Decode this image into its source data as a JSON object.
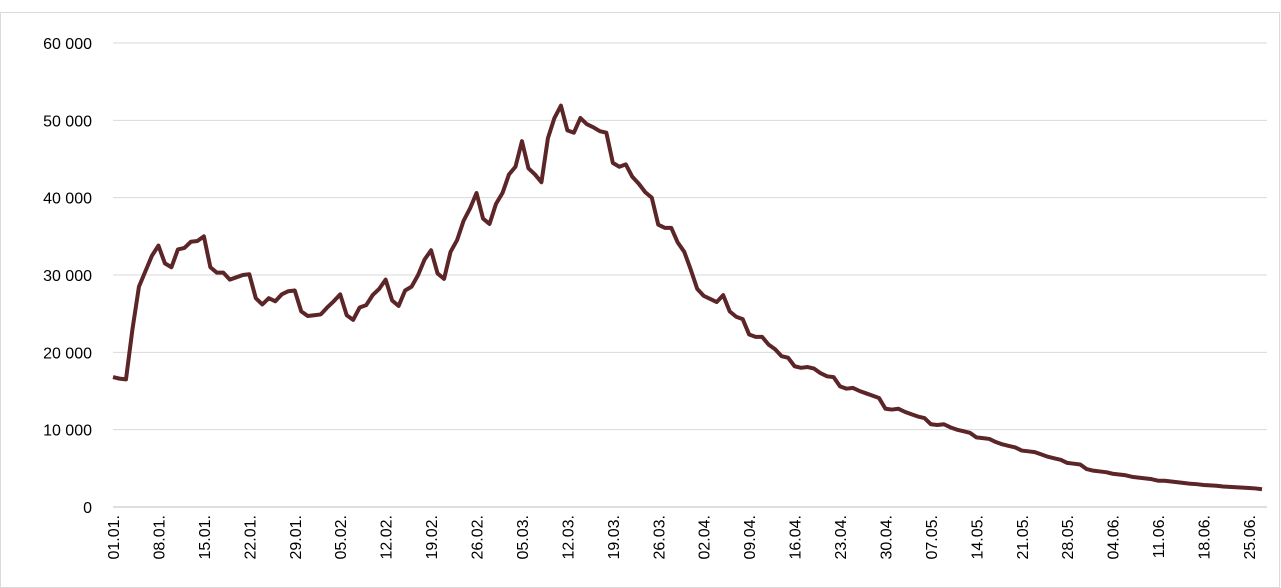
{
  "chart_data": {
    "type": "line",
    "categories": [
      "01.01.",
      null,
      null,
      null,
      null,
      null,
      null,
      "08.01.",
      null,
      null,
      null,
      null,
      null,
      null,
      "15.01.",
      null,
      null,
      null,
      null,
      null,
      null,
      "22.01.",
      null,
      null,
      null,
      null,
      null,
      null,
      "29.01.",
      null,
      null,
      null,
      null,
      null,
      null,
      "05.02.",
      null,
      null,
      null,
      null,
      null,
      null,
      "12.02.",
      null,
      null,
      null,
      null,
      null,
      null,
      "19.02.",
      null,
      null,
      null,
      null,
      null,
      null,
      "26.02.",
      null,
      null,
      null,
      null,
      null,
      null,
      "05.03.",
      null,
      null,
      null,
      null,
      null,
      null,
      "12.03.",
      null,
      null,
      null,
      null,
      null,
      null,
      "19.03.",
      null,
      null,
      null,
      null,
      null,
      null,
      "26.03.",
      null,
      null,
      null,
      null,
      null,
      null,
      "02.04.",
      null,
      null,
      null,
      null,
      null,
      null,
      "09.04.",
      null,
      null,
      null,
      null,
      null,
      null,
      "16.04.",
      null,
      null,
      null,
      null,
      null,
      null,
      "23.04.",
      null,
      null,
      null,
      null,
      null,
      null,
      "30.04.",
      null,
      null,
      null,
      null,
      null,
      null,
      "07.05.",
      null,
      null,
      null,
      null,
      null,
      null,
      "14.05.",
      null,
      null,
      null,
      null,
      null,
      null,
      "21.05.",
      null,
      null,
      null,
      null,
      null,
      null,
      "28.05.",
      null,
      null,
      null,
      null,
      null,
      null,
      "04.06.",
      null,
      null,
      null,
      null,
      null,
      null,
      "11.06.",
      null,
      null,
      null,
      null,
      null,
      null,
      "18.06.",
      null,
      null,
      null,
      null,
      null,
      null,
      "25.06.",
      null,
      null
    ],
    "series": [
      {
        "color": "#5c2527",
        "values": [
          16800,
          16600,
          16500,
          23000,
          28500,
          30500,
          32500,
          33800,
          31500,
          31000,
          33300,
          33500,
          34300,
          34400,
          35000,
          31000,
          30300,
          30300,
          29400,
          29700,
          30000,
          30100,
          27000,
          26200,
          27000,
          26600,
          27500,
          27900,
          28000,
          25300,
          24700,
          24800,
          24900,
          25800,
          26600,
          27500,
          24800,
          24200,
          25800,
          26100,
          27400,
          28200,
          29400,
          26700,
          26000,
          28000,
          28500,
          30000,
          32000,
          33200,
          30200,
          29500,
          33000,
          34500,
          37000,
          38600,
          40600,
          37300,
          36600,
          39200,
          40600,
          43000,
          44000,
          47300,
          43800,
          43000,
          42000,
          47700,
          50300,
          51900,
          48700,
          48400,
          50300,
          49500,
          49100,
          48600,
          48400,
          44500,
          44000,
          44300,
          42700,
          41800,
          40700,
          40000,
          36500,
          36100,
          36100,
          34200,
          33000,
          30700,
          28200,
          27300,
          26900,
          26500,
          27400,
          25300,
          24600,
          24300,
          22300,
          22000,
          22000,
          21000,
          20400,
          19500,
          19300,
          18200,
          18000,
          18100,
          17900,
          17300,
          16900,
          16800,
          15600,
          15300,
          15400,
          15000,
          14700,
          14400,
          14100,
          12700,
          12600,
          12700,
          12300,
          12000,
          11700,
          11500,
          10700,
          10600,
          10700,
          10300,
          10000,
          9800,
          9600,
          9000,
          8900,
          8800,
          8400,
          8100,
          7900,
          7700,
          7300,
          7200,
          7100,
          6800,
          6500,
          6300,
          6100,
          5700,
          5600,
          5500,
          4900,
          4700,
          4600,
          4500,
          4300,
          4200,
          4100,
          3900,
          3800,
          3700,
          3600,
          3400,
          3400,
          3300,
          3200,
          3100,
          3000,
          2950,
          2850,
          2800,
          2750,
          2650,
          2600,
          2550,
          2500,
          2450,
          2400,
          2300
        ]
      }
    ],
    "ylim": [
      0,
      60000
    ],
    "yticks": [
      0,
      {
        "value": 10000,
        "label": "10 000"
      },
      {
        "value": 20000,
        "label": "20 000"
      },
      {
        "value": 30000,
        "label": "30 000"
      },
      {
        "value": 40000,
        "label": "40 000"
      },
      {
        "value": 50000,
        "label": "50 000"
      },
      {
        "value": 60000,
        "label": "60 000"
      }
    ],
    "grid": true
  }
}
